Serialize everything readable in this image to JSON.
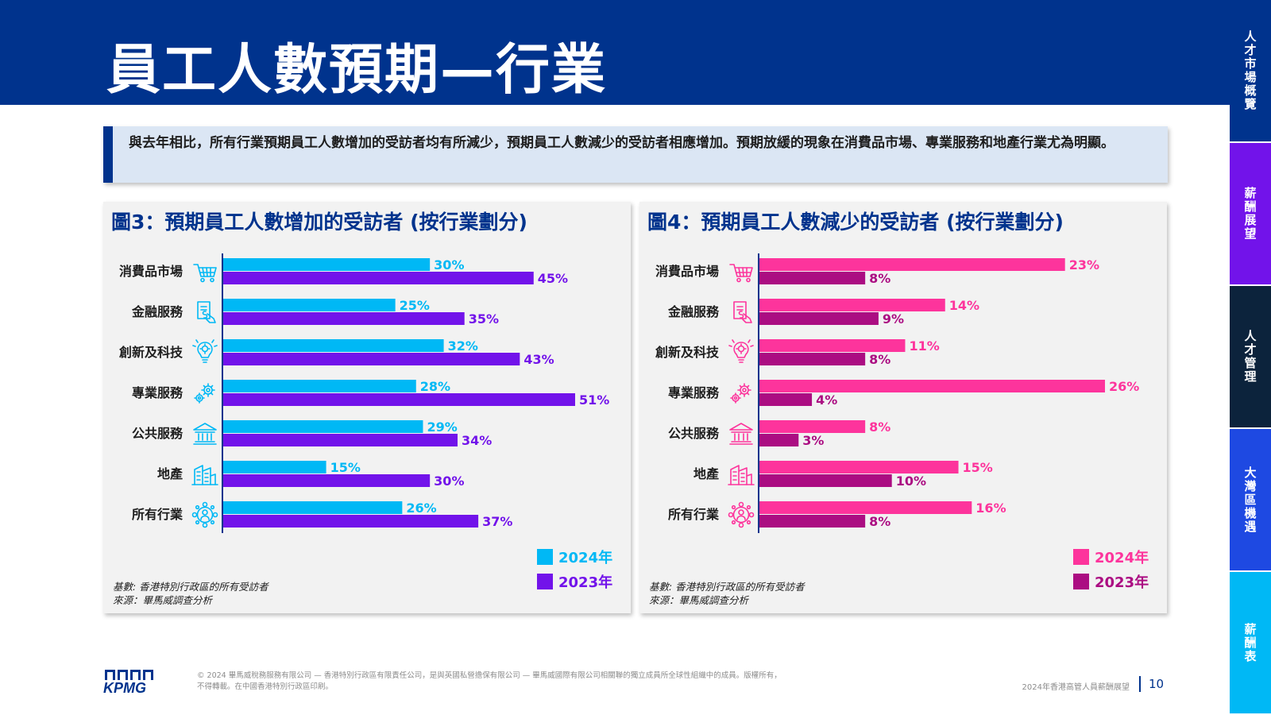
{
  "title": "員工人數預期—行業",
  "side_nav": [
    {
      "label": "人才市場概覽",
      "color": "#00338d"
    },
    {
      "label": "薪酬展望",
      "color": "#7213ea"
    },
    {
      "label": "人才管理",
      "color": "#0c233c"
    },
    {
      "label": "大灣區機遇",
      "color": "#1e49e2"
    },
    {
      "label": "薪酬表",
      "color": "#00b8f5"
    }
  ],
  "callout_text": "與去年相比，所有行業預期員工人數增加的受訪者均有所減少，預期員工人數減少的受訪者相應增加。預期放緩的現象在消費品市場、專業服務和地產行業尤為明顯。",
  "notes": {
    "base": "基數: 香港特別行政區的所有受訪者",
    "source": "來源：畢馬威調查分析"
  },
  "footer": {
    "logo_text": "KPMG",
    "copyright": "© 2024 畢馬威稅務服務有限公司 — 香港特別行政區有限責任公司，是與英國私營擔保有限公司 — 畢馬威國際有限公司相關聯的獨立成員所全球性組織中的成員。版權所有，不得轉載。在中國香港特別行政區印刷。",
    "report_title": "2024年香港高管人員薪酬展望",
    "page_number": "10"
  },
  "chart_data": [
    {
      "type": "bar",
      "orientation": "horizontal",
      "title": "圖3：預期員工人數增加的受訪者 (按行業劃分)",
      "categories": [
        "消費品市場",
        "金融服務",
        "創新及科技",
        "專業服務",
        "公共服務",
        "地產",
        "所有行業"
      ],
      "icons": [
        "shopping-cart-icon",
        "finance-document-icon",
        "lightbulb-gear-icon",
        "gears-icon",
        "bank-building-icon",
        "office-buildings-icon",
        "network-people-icon"
      ],
      "series": [
        {
          "name": "2024年",
          "values": [
            30,
            25,
            32,
            28,
            29,
            15,
            26
          ],
          "labels": [
            "30%",
            "25%",
            "32%",
            "28%",
            "29%",
            "15%",
            "26%"
          ],
          "color": "#00b8f5"
        },
        {
          "name": "2023年",
          "values": [
            45,
            35,
            43,
            51,
            34,
            30,
            37
          ],
          "labels": [
            "45%",
            "35%",
            "43%",
            "51%",
            "34%",
            "30%",
            "37%"
          ],
          "color": "#7213ea"
        }
      ],
      "xlim": [
        0,
        51
      ],
      "unit": "%",
      "grid": false,
      "legend": "bottom-right",
      "icon_color": "#00b8f5"
    },
    {
      "type": "bar",
      "orientation": "horizontal",
      "title": "圖4：預期員工人數減少的受訪者 (按行業劃分)",
      "categories": [
        "消費品市場",
        "金融服務",
        "創新及科技",
        "專業服務",
        "公共服務",
        "地產",
        "所有行業"
      ],
      "icons": [
        "shopping-cart-icon",
        "finance-document-icon",
        "lightbulb-gear-icon",
        "gears-icon",
        "bank-building-icon",
        "office-buildings-icon",
        "network-people-icon"
      ],
      "series": [
        {
          "name": "2024年",
          "values": [
            23,
            14,
            11,
            26,
            8,
            15,
            16
          ],
          "labels": [
            "23%",
            "14%",
            "11%",
            "26%",
            "8%",
            "15%",
            "16%"
          ],
          "color": "#fd349c"
        },
        {
          "name": "2023年",
          "values": [
            8,
            9,
            8,
            4,
            3,
            10,
            8
          ],
          "labels": [
            "8%",
            "9%",
            "8%",
            "4%",
            "3%",
            "10%",
            "8%"
          ],
          "color": "#ab0d82"
        }
      ],
      "xlim": [
        0,
        26
      ],
      "unit": "%",
      "grid": false,
      "legend": "bottom-right",
      "icon_color": "#fd349c"
    }
  ]
}
